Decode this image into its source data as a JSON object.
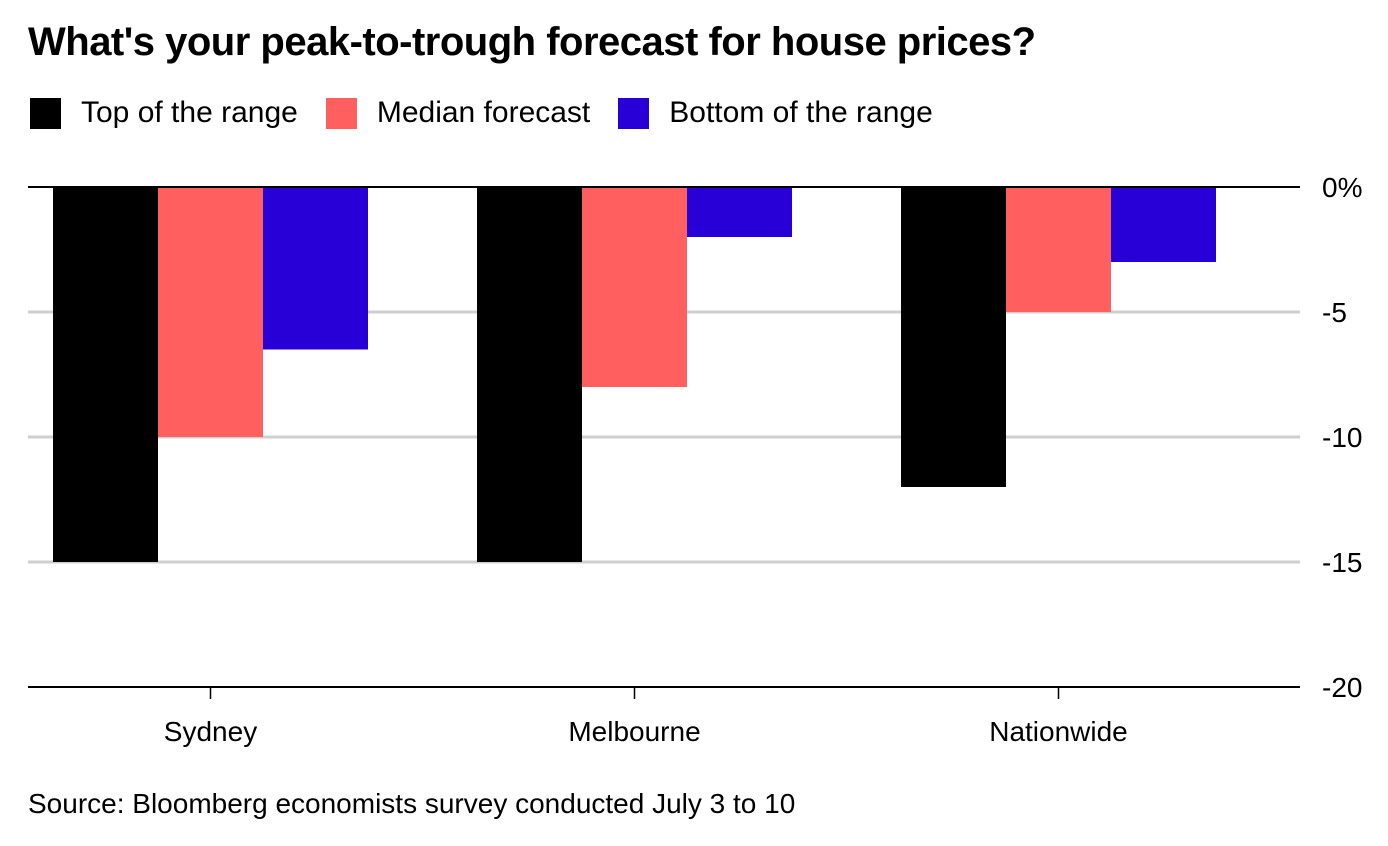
{
  "chart_data": {
    "type": "bar",
    "title": "What's your peak-to-trough forecast for house prices?",
    "xlabel": "",
    "ylabel": "",
    "categories": [
      "Sydney",
      "Melbourne",
      "Nationwide"
    ],
    "series": [
      {
        "name": "Top of the range",
        "color": "#000000",
        "values": [
          -15,
          -15,
          -12
        ]
      },
      {
        "name": "Median forecast",
        "color": "#ff5f5f",
        "values": [
          -10,
          -8,
          -5
        ]
      },
      {
        "name": "Bottom of the range",
        "color": "#2800d7",
        "values": [
          -6.5,
          -2,
          -3
        ]
      }
    ],
    "ylim": [
      -20,
      0
    ],
    "yticks": [
      0,
      -5,
      -10,
      -15,
      -20
    ],
    "ytick_labels": [
      "0%",
      "-5",
      "-10",
      "-15",
      "-20"
    ],
    "y_axis_position": "right",
    "grid": true,
    "legend_position": "top-left",
    "source": "Source: Bloomberg economists survey conducted July 3 to 10"
  }
}
